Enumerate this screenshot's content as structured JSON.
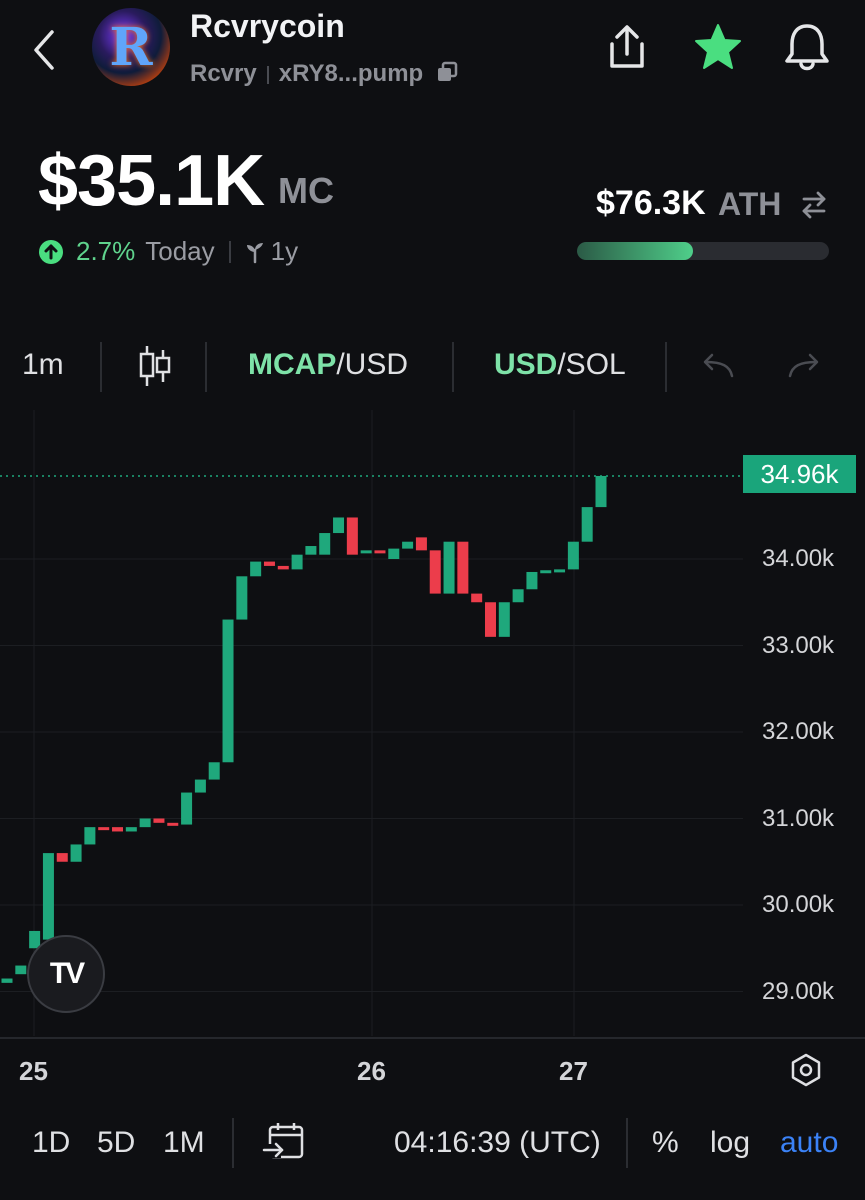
{
  "header": {
    "title": "Rcvrycoin",
    "ticker": "Rcvry",
    "address": "xRY8...pump",
    "logo_letter": "R"
  },
  "stats": {
    "market_cap": "$35.1K",
    "market_cap_unit": "MC",
    "change": "2.7%",
    "change_period": "Today",
    "age": "1y",
    "ath_value": "$76.3K",
    "ath_label": "ATH",
    "ath_progress": 0.46
  },
  "toolbar": {
    "interval": "1m",
    "mcap": "MCAP",
    "mcap_usd": "/USD",
    "usd": "USD",
    "usd_sol": "/SOL"
  },
  "chart_data": {
    "type": "candlestick",
    "current_price_label": "34.96k",
    "current_price": 34.96,
    "y_ticks": [
      "34.00k",
      "33.00k",
      "32.00k",
      "31.00k",
      "30.00k",
      "29.00k"
    ],
    "y_values": [
      34,
      33,
      32,
      31,
      30,
      29
    ],
    "x_ticks": [
      "25",
      "26",
      "27"
    ],
    "candles": [
      {
        "o": 29.1,
        "c": 29.15
      },
      {
        "o": 29.2,
        "c": 29.3
      },
      {
        "o": 29.5,
        "c": 29.7
      },
      {
        "o": 29.6,
        "c": 30.6
      },
      {
        "o": 30.6,
        "c": 30.5
      },
      {
        "o": 30.5,
        "c": 30.7
      },
      {
        "o": 30.7,
        "c": 30.9
      },
      {
        "o": 30.9,
        "c": 30.88
      },
      {
        "o": 30.9,
        "c": 30.85
      },
      {
        "o": 30.85,
        "c": 30.9
      },
      {
        "o": 30.9,
        "c": 31.0
      },
      {
        "o": 31.0,
        "c": 30.95
      },
      {
        "o": 30.95,
        "c": 30.93
      },
      {
        "o": 30.93,
        "c": 31.3
      },
      {
        "o": 31.3,
        "c": 31.45
      },
      {
        "o": 31.45,
        "c": 31.65
      },
      {
        "o": 31.65,
        "c": 33.3
      },
      {
        "o": 33.3,
        "c": 33.8
      },
      {
        "o": 33.8,
        "c": 33.97
      },
      {
        "o": 33.97,
        "c": 33.92
      },
      {
        "o": 33.92,
        "c": 33.88
      },
      {
        "o": 33.88,
        "c": 34.05
      },
      {
        "o": 34.05,
        "c": 34.15
      },
      {
        "o": 34.05,
        "c": 34.3
      },
      {
        "o": 34.3,
        "c": 34.48
      },
      {
        "o": 34.48,
        "c": 34.05
      },
      {
        "o": 34.1,
        "c": 34.1
      },
      {
        "o": 34.1,
        "c": 34.08
      },
      {
        "o": 34.0,
        "c": 34.12
      },
      {
        "o": 34.12,
        "c": 34.2
      },
      {
        "o": 34.25,
        "c": 34.1
      },
      {
        "o": 34.1,
        "c": 33.6
      },
      {
        "o": 33.6,
        "c": 34.2
      },
      {
        "o": 34.2,
        "c": 33.6
      },
      {
        "o": 33.6,
        "c": 33.5
      },
      {
        "o": 33.5,
        "c": 33.1
      },
      {
        "o": 33.1,
        "c": 33.5
      },
      {
        "o": 33.5,
        "c": 33.65
      },
      {
        "o": 33.65,
        "c": 33.85
      },
      {
        "o": 33.85,
        "c": 33.87
      },
      {
        "o": 33.87,
        "c": 33.88
      },
      {
        "o": 33.88,
        "c": 34.2
      },
      {
        "o": 34.2,
        "c": 34.6
      },
      {
        "o": 34.6,
        "c": 34.96
      }
    ]
  },
  "bottom": {
    "range_1d": "1D",
    "range_5d": "5D",
    "range_1m": "1M",
    "time": "04:16:39 (UTC)",
    "percent": "%",
    "log": "log",
    "auto": "auto"
  },
  "colors": {
    "up": "#1fa87c",
    "down": "#ec3d4b",
    "accent_green": "#5fd38d",
    "accent_blue": "#3b82f6"
  }
}
